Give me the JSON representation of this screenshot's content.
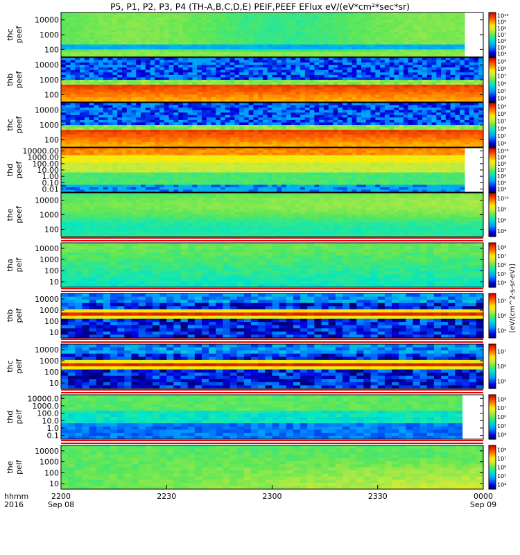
{
  "title": "P5, P1, P2, P3, P4 (TH-A,B,C,D,E) PEIF,PEEF EFlux eV/(eV*cm²*sec*sr)",
  "colorbar_unit_label": "[eV/(cm^2-s-sr-eV)]",
  "x_axis": {
    "row_label_1": "hhmm",
    "row_label_2": "2016",
    "ticks": [
      {
        "time": "2200",
        "date": "Sep 08"
      },
      {
        "time": "2230",
        "date": ""
      },
      {
        "time": "2300",
        "date": ""
      },
      {
        "time": "2330",
        "date": ""
      },
      {
        "time": "0000",
        "date": "Sep 09"
      }
    ]
  },
  "chart_data": {
    "type": "heatmap",
    "description_x": "time, 2016-09-08 22:00 to 2016-09-09 00:00 UT",
    "panels": [
      {
        "probe": "thc",
        "species": "peef",
        "yscale": "log",
        "y_ticks": [
          "100",
          "1000",
          "10000"
        ],
        "cbar_ticks": [
          "10⁴",
          "10⁵",
          "10⁶",
          "10⁷",
          "10⁸",
          "10⁹",
          "10¹⁰"
        ],
        "pattern": "green_with_blue_band",
        "data_ends_fraction": 0.95
      },
      {
        "probe": "thb",
        "species": "peef",
        "yscale": "log",
        "y_ticks": [
          "100",
          "1000",
          "10000"
        ],
        "cbar_ticks": [
          "10⁴",
          "10⁵",
          "10⁶",
          "10⁷",
          "10⁸",
          "10⁹"
        ],
        "pattern": "noisy_top_red_bottom"
      },
      {
        "probe": "thc",
        "species": "peef",
        "yscale": "log",
        "y_ticks": [
          "100",
          "1000",
          "10000"
        ],
        "cbar_ticks": [
          "10⁴",
          "10⁵",
          "10⁶",
          "10⁷",
          "10⁸",
          "10⁹"
        ],
        "pattern": "noisy_top_red_bottom"
      },
      {
        "probe": "thd",
        "species": "peef",
        "yscale": "log",
        "y_ticks": [
          "0.01",
          "0.10",
          "1.00",
          "10.00",
          "100.00",
          "1000.00",
          "10000.00"
        ],
        "cbar_ticks": [
          "10⁴",
          "10⁵",
          "10⁶",
          "10⁷",
          "10⁸",
          "10⁹",
          "10¹⁰"
        ],
        "pattern": "layered_low_energy",
        "data_ends_fraction": 0.95
      },
      {
        "probe": "the",
        "species": "peef",
        "yscale": "log",
        "y_ticks": [
          "100",
          "1000",
          "10000"
        ],
        "cbar_ticks": [
          "10⁴",
          "10⁶",
          "10⁸",
          "10¹⁰"
        ],
        "pattern": "green_smooth"
      },
      {
        "probe": "tha",
        "species": "peif",
        "yscale": "log",
        "y_ticks": [
          "10",
          "100",
          "1000",
          "10000"
        ],
        "cbar_ticks": [
          "10⁴",
          "10⁵",
          "10⁶",
          "10⁷",
          "10⁸"
        ],
        "pattern": "ion_green",
        "data_ends_fraction": 0.99
      },
      {
        "probe": "thb",
        "species": "peif",
        "yscale": "log",
        "y_ticks": [
          "10",
          "100",
          "1000",
          "10000"
        ],
        "cbar_ticks": [
          "10⁵",
          "10⁶",
          "10⁷"
        ],
        "pattern": "ion_dark_red_band",
        "data_ends_fraction": 0.99
      },
      {
        "probe": "thc",
        "species": "peif",
        "yscale": "log",
        "y_ticks": [
          "10",
          "100",
          "1000",
          "10000"
        ],
        "cbar_ticks": [
          "10⁵",
          "10⁶",
          "10⁷"
        ],
        "pattern": "ion_dark_red_band",
        "data_ends_fraction": 0.99
      },
      {
        "probe": "thd",
        "species": "peif",
        "yscale": "log",
        "y_ticks": [
          "0.1",
          "1.0",
          "10.0",
          "100.0",
          "1000.0",
          "10000.0"
        ],
        "cbar_ticks": [
          "10⁴",
          "10⁵",
          "10⁶",
          "10⁷",
          "10⁸"
        ],
        "pattern": "ion_layered",
        "data_ends_fraction": 0.95
      },
      {
        "probe": "the",
        "species": "peif",
        "yscale": "log",
        "y_ticks": [
          "10",
          "100",
          "1000",
          "10000"
        ],
        "cbar_ticks": [
          "10⁴",
          "10⁵",
          "10⁶",
          "10⁷",
          "10⁸"
        ],
        "pattern": "ion_green_yellow",
        "data_ends_fraction": 0.99
      }
    ]
  }
}
